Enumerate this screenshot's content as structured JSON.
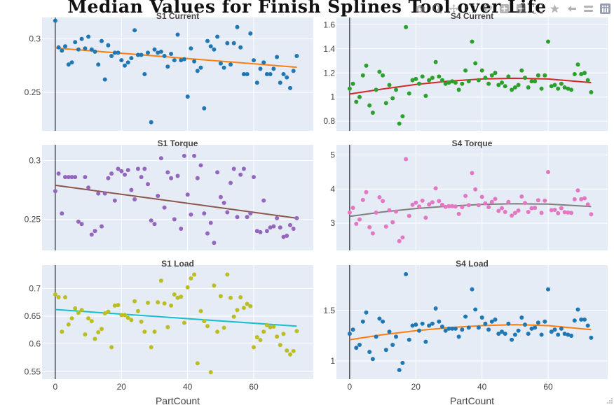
{
  "title": "Median Values for Finish Splines Tool over Life",
  "x_axis_label": "PartCount",
  "colors": {
    "plot_bg": "#e5ecf6",
    "grid": "#ffffff",
    "zeroline": "#000000",
    "tick_text": "#444444"
  },
  "modebar": {
    "icons": [
      "camera-icon",
      "zoom-icon",
      "pan-icon",
      "box-select-icon",
      "lasso-icon",
      "zoom-in-icon",
      "zoom-out-icon",
      "autoscale-icon",
      "reset-axes-icon",
      "spike-lines-icon",
      "hover-closest-icon",
      "hover-compare-icon",
      "plotly-logo-icon"
    ]
  },
  "chart_data": [
    {
      "type": "scatter",
      "title": "S1 Current",
      "xlabel": "",
      "ylabel": "",
      "xlim": [
        -4,
        78
      ],
      "ylim": [
        0.214,
        0.32
      ],
      "yticks": [
        0.25,
        0.3
      ],
      "ytick_labels": [
        "0.25",
        "0.3"
      ],
      "xticks": [],
      "marker_color": "#1f77b4",
      "trend_color": "#ff7f0e",
      "trend": {
        "x": [
          0,
          73
        ],
        "y": [
          0.2915,
          0.2735
        ]
      },
      "x": [
        0,
        1,
        2,
        3,
        4,
        5,
        6,
        7,
        8,
        9,
        10,
        11,
        12,
        13,
        14,
        15,
        16,
        17,
        18,
        19,
        20,
        21,
        22,
        23,
        24,
        25,
        26,
        27,
        28,
        29,
        30,
        31,
        32,
        33,
        34,
        35,
        36,
        37,
        38,
        39,
        40,
        41,
        42,
        43,
        44,
        45,
        46,
        47,
        48,
        49,
        50,
        51,
        52,
        53,
        54,
        55,
        56,
        57,
        58,
        59,
        60,
        61,
        62,
        63,
        64,
        65,
        66,
        67,
        68,
        69,
        70,
        71,
        72,
        73
      ],
      "y": [
        0.317,
        0.292,
        0.289,
        0.293,
        0.276,
        0.278,
        0.297,
        0.29,
        0.3,
        0.291,
        0.302,
        0.29,
        0.288,
        0.276,
        0.298,
        0.262,
        0.294,
        0.284,
        0.287,
        0.287,
        0.28,
        0.275,
        0.278,
        0.282,
        0.308,
        0.285,
        0.285,
        0.267,
        0.287,
        0.222,
        0.29,
        0.287,
        0.288,
        0.284,
        0.274,
        0.286,
        0.28,
        0.304,
        0.28,
        0.281,
        0.246,
        0.291,
        0.279,
        0.27,
        0.273,
        0.235,
        0.298,
        0.293,
        0.29,
        0.302,
        0.277,
        0.273,
        0.296,
        0.276,
        0.296,
        0.311,
        0.292,
        0.267,
        0.267,
        0.305,
        0.28,
        0.259,
        0.272,
        0.278,
        0.267,
        0.267,
        0.272,
        0.283,
        0.259,
        0.267,
        0.264,
        0.254,
        0.27,
        0.284
      ]
    },
    {
      "type": "scatter",
      "title": "S4 Current",
      "xlabel": "",
      "ylabel": "",
      "xlim": [
        -4,
        78
      ],
      "ylim": [
        0.72,
        1.66
      ],
      "yticks": [
        0.8,
        1,
        1.2,
        1.4,
        1.6
      ],
      "ytick_labels": [
        "0.8",
        "1",
        "1.2",
        "1.4",
        "1.6"
      ],
      "xticks": [],
      "marker_color": "#2ca02c",
      "trend_color": "#d62728",
      "trend": {
        "x": [
          0,
          10,
          20,
          30,
          40,
          50,
          60,
          73
        ],
        "y": [
          1.025,
          1.067,
          1.104,
          1.132,
          1.15,
          1.156,
          1.15,
          1.12
        ]
      },
      "x": [
        0,
        1,
        2,
        3,
        4,
        5,
        6,
        7,
        8,
        9,
        10,
        11,
        12,
        13,
        14,
        15,
        16,
        17,
        18,
        19,
        20,
        21,
        22,
        23,
        24,
        25,
        26,
        27,
        28,
        29,
        30,
        31,
        32,
        33,
        34,
        35,
        36,
        37,
        38,
        39,
        40,
        41,
        42,
        43,
        44,
        45,
        46,
        47,
        48,
        49,
        50,
        51,
        52,
        53,
        54,
        55,
        56,
        57,
        58,
        59,
        60,
        61,
        62,
        63,
        64,
        65,
        66,
        67,
        68,
        69,
        70,
        71,
        72,
        73
      ],
      "y": [
        1.07,
        1.11,
        0.96,
        1.0,
        1.18,
        1.26,
        0.93,
        0.87,
        1.06,
        1.21,
        1.18,
        0.95,
        1.1,
        0.99,
        1.06,
        0.78,
        0.84,
        1.58,
        1.03,
        1.14,
        1.15,
        1.11,
        1.17,
        1.01,
        1.14,
        1.16,
        1.29,
        1.17,
        1.14,
        1.11,
        1.12,
        1.13,
        1.12,
        1.06,
        1.11,
        1.22,
        1.13,
        1.46,
        1.28,
        1.14,
        1.22,
        1.16,
        1.11,
        1.18,
        1.2,
        1.1,
        1.12,
        1.09,
        1.17,
        1.06,
        1.08,
        1.1,
        1.22,
        1.16,
        1.08,
        1.13,
        1.13,
        1.18,
        1.07,
        1.18,
        1.46,
        1.09,
        1.1,
        1.07,
        1.11,
        1.08,
        1.07,
        1.06,
        1.19,
        1.27,
        1.19,
        1.2,
        1.14,
        1.04
      ]
    },
    {
      "type": "scatter",
      "title": "S1 Torque",
      "xlabel": "",
      "ylabel": "",
      "xlim": [
        -4,
        78
      ],
      "ylim": [
        0.2235,
        0.3135
      ],
      "yticks": [
        0.25,
        0.3
      ],
      "ytick_labels": [
        "0.25",
        "0.3"
      ],
      "xticks": [],
      "marker_color": "#9467bd",
      "trend_color": "#8c564b",
      "trend": {
        "x": [
          0,
          73
        ],
        "y": [
          0.279,
          0.251
        ]
      },
      "x": [
        0,
        1,
        2,
        3,
        4,
        5,
        6,
        7,
        8,
        9,
        10,
        11,
        12,
        13,
        14,
        15,
        16,
        17,
        18,
        19,
        20,
        21,
        22,
        23,
        24,
        25,
        26,
        27,
        28,
        29,
        30,
        31,
        32,
        33,
        34,
        35,
        36,
        37,
        38,
        39,
        40,
        41,
        42,
        43,
        44,
        45,
        46,
        47,
        48,
        49,
        50,
        51,
        52,
        53,
        54,
        55,
        56,
        57,
        58,
        59,
        60,
        61,
        62,
        63,
        64,
        65,
        66,
        67,
        68,
        69,
        70,
        71,
        72,
        73
      ],
      "y": [
        0.274,
        0.289,
        0.255,
        0.286,
        0.286,
        0.286,
        0.286,
        0.248,
        0.246,
        0.286,
        0.277,
        0.237,
        0.24,
        0.272,
        0.244,
        0.272,
        0.285,
        0.289,
        0.266,
        0.293,
        0.291,
        0.288,
        0.292,
        0.275,
        0.267,
        0.293,
        0.286,
        0.293,
        0.28,
        0.249,
        0.246,
        0.27,
        0.302,
        0.26,
        0.29,
        0.285,
        0.25,
        0.287,
        0.242,
        0.304,
        0.271,
        0.254,
        0.304,
        0.285,
        0.296,
        0.255,
        0.238,
        0.247,
        0.23,
        0.29,
        0.269,
        0.264,
        0.256,
        0.281,
        0.293,
        0.252,
        0.288,
        0.293,
        0.252,
        0.255,
        0.286,
        0.24,
        0.239,
        0.266,
        0.24,
        0.243,
        0.244,
        0.251,
        0.243,
        0.235,
        0.236,
        0.245,
        0.242,
        0.251
      ]
    },
    {
      "type": "scatter",
      "title": "S4 Torque",
      "xlabel": "",
      "ylabel": "",
      "xlim": [
        -4,
        78
      ],
      "ylim": [
        2.2,
        5.3
      ],
      "yticks": [
        3,
        4,
        5
      ],
      "ytick_labels": [
        "3",
        "4",
        "5"
      ],
      "xticks": [],
      "marker_color": "#e377c2",
      "trend_color": "#7f7f7f",
      "trend": {
        "x": [
          0,
          10,
          20,
          30,
          40,
          50,
          60,
          73
        ],
        "y": [
          3.2,
          3.33,
          3.43,
          3.5,
          3.55,
          3.57,
          3.56,
          3.49
        ]
      },
      "x": [
        0,
        1,
        2,
        3,
        4,
        5,
        6,
        7,
        8,
        9,
        10,
        11,
        12,
        13,
        14,
        15,
        16,
        17,
        18,
        19,
        20,
        21,
        22,
        23,
        24,
        25,
        26,
        27,
        28,
        29,
        30,
        31,
        32,
        33,
        34,
        35,
        36,
        37,
        38,
        39,
        40,
        41,
        42,
        43,
        44,
        45,
        46,
        47,
        48,
        49,
        50,
        51,
        52,
        53,
        54,
        55,
        56,
        57,
        58,
        59,
        60,
        61,
        62,
        63,
        64,
        65,
        66,
        67,
        68,
        69,
        70,
        71,
        72,
        73
      ],
      "y": [
        3.31,
        3.45,
        2.98,
        3.11,
        3.68,
        3.91,
        2.88,
        2.7,
        3.31,
        3.76,
        3.65,
        2.9,
        3.38,
        3.03,
        3.34,
        2.47,
        2.58,
        4.88,
        3.21,
        3.54,
        3.6,
        3.49,
        3.66,
        3.16,
        3.55,
        3.61,
        4.02,
        3.65,
        3.54,
        3.48,
        3.5,
        3.5,
        3.49,
        3.27,
        3.47,
        3.8,
        3.53,
        4.47,
        3.99,
        3.53,
        3.77,
        3.58,
        3.47,
        3.62,
        3.71,
        3.36,
        3.44,
        3.33,
        3.62,
        3.22,
        3.3,
        3.37,
        3.78,
        3.59,
        3.33,
        3.44,
        3.45,
        3.67,
        3.3,
        3.66,
        4.5,
        3.38,
        3.39,
        3.29,
        3.44,
        3.32,
        3.31,
        3.3,
        3.7,
        3.96,
        3.7,
        3.73,
        3.55,
        3.26
      ]
    },
    {
      "type": "scatter",
      "title": "S1 Load",
      "xlabel": "PartCount",
      "ylabel": "",
      "xlim": [
        -4,
        78
      ],
      "ylim": [
        0.5365,
        0.742
      ],
      "yticks": [
        0.55,
        0.6,
        0.65,
        0.7
      ],
      "ytick_labels": [
        "0.55",
        "0.6",
        "0.65",
        "0.7"
      ],
      "xticks": [
        0,
        20,
        40,
        60
      ],
      "xtick_labels": [
        "0",
        "20",
        "40",
        "60"
      ],
      "marker_color": "#bcbd22",
      "trend_color": "#17becf",
      "trend": {
        "x": [
          0,
          73
        ],
        "y": [
          0.662,
          0.632
        ]
      },
      "x": [
        0,
        1,
        2,
        3,
        4,
        5,
        6,
        7,
        8,
        9,
        10,
        11,
        12,
        13,
        14,
        15,
        16,
        17,
        18,
        19,
        20,
        21,
        22,
        23,
        24,
        25,
        26,
        27,
        28,
        29,
        30,
        31,
        32,
        33,
        34,
        35,
        36,
        37,
        38,
        39,
        40,
        41,
        42,
        43,
        44,
        45,
        46,
        47,
        48,
        49,
        50,
        51,
        52,
        53,
        54,
        55,
        56,
        57,
        58,
        59,
        60,
        61,
        62,
        63,
        64,
        65,
        66,
        67,
        68,
        69,
        70,
        71,
        72,
        73
      ],
      "y": [
        0.689,
        0.684,
        0.622,
        0.684,
        0.635,
        0.646,
        0.664,
        0.656,
        0.661,
        0.617,
        0.646,
        0.641,
        0.609,
        0.621,
        0.627,
        0.655,
        0.658,
        0.594,
        0.669,
        0.67,
        0.652,
        0.652,
        0.647,
        0.643,
        0.677,
        0.659,
        0.64,
        0.622,
        0.674,
        0.594,
        0.622,
        0.675,
        0.714,
        0.673,
        0.63,
        0.669,
        0.689,
        0.683,
        0.685,
        0.638,
        0.702,
        0.718,
        0.725,
        0.565,
        0.659,
        0.641,
        0.632,
        0.549,
        0.705,
        0.622,
        0.686,
        0.629,
        0.725,
        0.683,
        0.649,
        0.661,
        0.684,
        0.665,
        0.672,
        0.668,
        0.594,
        0.612,
        0.607,
        0.622,
        0.634,
        0.63,
        0.631,
        0.613,
        0.598,
        0.618,
        0.588,
        0.581,
        0.587,
        0.623
      ]
    },
    {
      "type": "scatter",
      "title": "S4 Load",
      "xlabel": "PartCount",
      "ylabel": "",
      "xlim": [
        -4,
        78
      ],
      "ylim": [
        0.82,
        1.95
      ],
      "yticks": [
        1,
        1.5
      ],
      "ytick_labels": [
        "1",
        "1.5"
      ],
      "xticks": [
        0,
        20,
        40,
        60
      ],
      "xtick_labels": [
        "0",
        "20",
        "40",
        "60"
      ],
      "marker_color": "#1f77b4",
      "trend_color": "#ff7f0e",
      "trend": {
        "x": [
          0,
          10,
          20,
          30,
          40,
          50,
          60,
          73
        ],
        "y": [
          1.21,
          1.26,
          1.3,
          1.33,
          1.35,
          1.36,
          1.35,
          1.31
        ]
      },
      "x": [
        0,
        1,
        2,
        3,
        4,
        5,
        6,
        7,
        8,
        9,
        10,
        11,
        12,
        13,
        14,
        15,
        16,
        17,
        18,
        19,
        20,
        21,
        22,
        23,
        24,
        25,
        26,
        27,
        28,
        29,
        30,
        31,
        32,
        33,
        34,
        35,
        36,
        37,
        38,
        39,
        40,
        41,
        42,
        43,
        44,
        45,
        46,
        47,
        48,
        49,
        50,
        51,
        52,
        53,
        54,
        55,
        56,
        57,
        58,
        59,
        60,
        61,
        62,
        63,
        64,
        65,
        66,
        67,
        68,
        69,
        70,
        71,
        72,
        73
      ],
      "y": [
        1.27,
        1.31,
        1.13,
        1.16,
        1.39,
        1.48,
        1.09,
        1.02,
        1.24,
        1.42,
        1.39,
        1.11,
        1.29,
        1.16,
        1.24,
        0.91,
        0.98,
        1.86,
        1.21,
        1.35,
        1.36,
        1.3,
        1.37,
        1.19,
        1.35,
        1.37,
        1.52,
        1.39,
        1.34,
        1.3,
        1.32,
        1.32,
        1.32,
        1.24,
        1.31,
        1.44,
        1.33,
        1.71,
        1.51,
        1.33,
        1.43,
        1.37,
        1.31,
        1.39,
        1.41,
        1.27,
        1.29,
        1.27,
        1.37,
        1.21,
        1.26,
        1.3,
        1.43,
        1.36,
        1.27,
        1.32,
        1.33,
        1.38,
        1.26,
        1.39,
        1.71,
        1.29,
        1.31,
        1.26,
        1.32,
        1.27,
        1.26,
        1.25,
        1.4,
        1.51,
        1.41,
        1.41,
        1.35,
        1.23
      ]
    }
  ]
}
